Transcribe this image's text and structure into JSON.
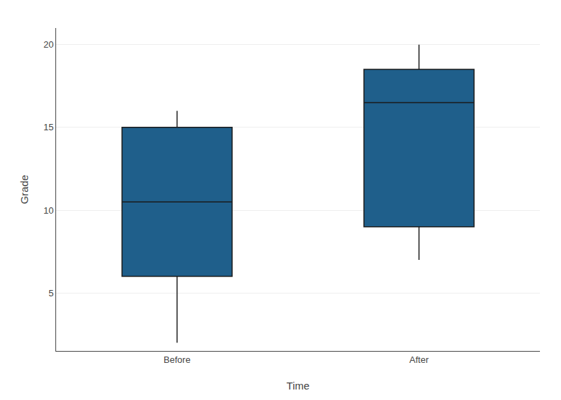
{
  "chart_data": {
    "type": "box",
    "categories": [
      "Before",
      "After"
    ],
    "boxes": [
      {
        "q1": 6,
        "median": 10.5,
        "q3": 15,
        "whisker_low": 2,
        "whisker_high": 16
      },
      {
        "q1": 9,
        "median": 16.5,
        "q3": 18.5,
        "whisker_low": 7,
        "whisker_high": 20
      }
    ],
    "color": "#1F5F8B",
    "xlabel": "Time",
    "ylabel": "Grade",
    "ylim": [
      1.5,
      21
    ],
    "yticks": [
      5,
      10,
      15,
      20
    ],
    "grid": true
  }
}
